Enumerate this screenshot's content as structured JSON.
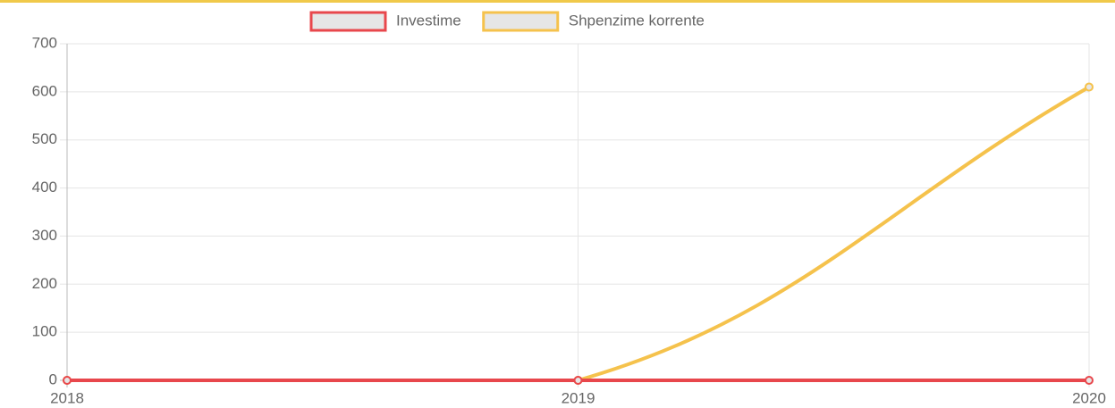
{
  "chart_data": {
    "type": "line",
    "categories": [
      "2018",
      "2019",
      "2020"
    ],
    "series": [
      {
        "name": "Investime",
        "color": "#e8474c",
        "values": [
          0,
          0,
          0
        ]
      },
      {
        "name": "Shpenzime korrente",
        "color": "#f5c24c",
        "values": [
          0,
          0,
          610
        ]
      }
    ],
    "ylim": [
      0,
      700
    ],
    "yticks": [
      0,
      100,
      200,
      300,
      400,
      500,
      600,
      700
    ],
    "grid": true,
    "legend": "top"
  }
}
